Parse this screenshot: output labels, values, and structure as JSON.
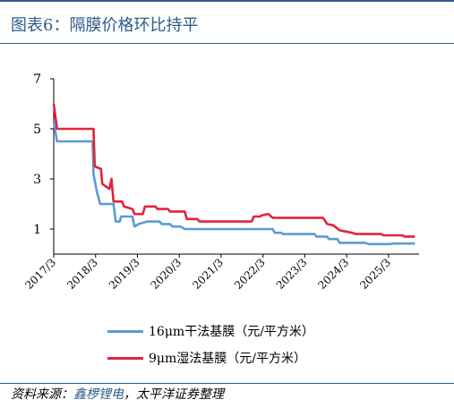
{
  "title": "图表6：隔膜价格环比持平",
  "source": {
    "prefix": "资料来源：",
    "org": "鑫椤锂电",
    "sep": "，",
    "suffix": "太平洋证券整理"
  },
  "colors": {
    "title": "#2E5C8A",
    "series_dry": "#5B9BD5",
    "series_wet": "#E0243A"
  },
  "chart_data": {
    "type": "line",
    "ylim": [
      0,
      7
    ],
    "yticks": [
      "1",
      "3",
      "5",
      "7"
    ],
    "ytick_values": [
      1,
      3,
      5,
      7
    ],
    "xlim": [
      2017.17,
      2025.9
    ],
    "xticks": [
      "2017/3",
      "2018/3",
      "2019/3",
      "2020/3",
      "2021/3",
      "2022/3",
      "2023/3",
      "2024/3",
      "2025/3"
    ],
    "xtick_values": [
      2017.17,
      2018.17,
      2019.17,
      2020.17,
      2021.17,
      2022.17,
      2023.17,
      2024.17,
      2025.17
    ],
    "legend_position": "bottom",
    "grid": false,
    "series": [
      {
        "name": "16μm干法基膜（元/平方米）",
        "color_key": "series_dry",
        "points": [
          [
            2017.17,
            5.3
          ],
          [
            2017.25,
            4.5
          ],
          [
            2018.1,
            4.5
          ],
          [
            2018.12,
            3.2
          ],
          [
            2018.2,
            2.5
          ],
          [
            2018.28,
            2.0
          ],
          [
            2018.6,
            2.0
          ],
          [
            2018.65,
            1.3
          ],
          [
            2018.75,
            1.3
          ],
          [
            2018.78,
            1.5
          ],
          [
            2019.05,
            1.5
          ],
          [
            2019.1,
            1.1
          ],
          [
            2019.2,
            1.2
          ],
          [
            2019.4,
            1.3
          ],
          [
            2019.7,
            1.3
          ],
          [
            2019.75,
            1.2
          ],
          [
            2019.95,
            1.2
          ],
          [
            2020.0,
            1.1
          ],
          [
            2020.2,
            1.1
          ],
          [
            2020.3,
            1.0
          ],
          [
            2022.4,
            1.0
          ],
          [
            2022.45,
            0.85
          ],
          [
            2022.6,
            0.85
          ],
          [
            2022.65,
            0.8
          ],
          [
            2023.4,
            0.8
          ],
          [
            2023.45,
            0.7
          ],
          [
            2023.7,
            0.7
          ],
          [
            2023.75,
            0.6
          ],
          [
            2023.95,
            0.6
          ],
          [
            2024.0,
            0.45
          ],
          [
            2024.6,
            0.45
          ],
          [
            2024.7,
            0.4
          ],
          [
            2025.2,
            0.4
          ],
          [
            2025.3,
            0.42
          ],
          [
            2025.8,
            0.42
          ]
        ]
      },
      {
        "name": "9μm湿法基膜（元/平方米）",
        "color_key": "series_wet",
        "points": [
          [
            2017.17,
            6.0
          ],
          [
            2017.25,
            5.0
          ],
          [
            2018.12,
            5.0
          ],
          [
            2018.15,
            3.5
          ],
          [
            2018.3,
            3.4
          ],
          [
            2018.33,
            2.8
          ],
          [
            2018.5,
            2.6
          ],
          [
            2018.55,
            3.0
          ],
          [
            2018.6,
            2.1
          ],
          [
            2018.8,
            2.1
          ],
          [
            2018.85,
            1.9
          ],
          [
            2019.05,
            1.8
          ],
          [
            2019.1,
            1.6
          ],
          [
            2019.3,
            1.6
          ],
          [
            2019.35,
            1.9
          ],
          [
            2019.6,
            1.9
          ],
          [
            2019.65,
            1.8
          ],
          [
            2019.9,
            1.8
          ],
          [
            2019.95,
            1.7
          ],
          [
            2020.3,
            1.7
          ],
          [
            2020.35,
            1.4
          ],
          [
            2020.6,
            1.4
          ],
          [
            2020.65,
            1.3
          ],
          [
            2021.9,
            1.3
          ],
          [
            2021.95,
            1.5
          ],
          [
            2022.1,
            1.5
          ],
          [
            2022.15,
            1.55
          ],
          [
            2022.3,
            1.6
          ],
          [
            2022.4,
            1.45
          ],
          [
            2023.6,
            1.45
          ],
          [
            2023.65,
            1.35
          ],
          [
            2023.7,
            1.2
          ],
          [
            2023.85,
            1.15
          ],
          [
            2024.0,
            0.95
          ],
          [
            2024.3,
            0.85
          ],
          [
            2024.4,
            0.8
          ],
          [
            2025.0,
            0.8
          ],
          [
            2025.05,
            0.75
          ],
          [
            2025.5,
            0.75
          ],
          [
            2025.55,
            0.7
          ],
          [
            2025.8,
            0.7
          ]
        ]
      }
    ]
  }
}
